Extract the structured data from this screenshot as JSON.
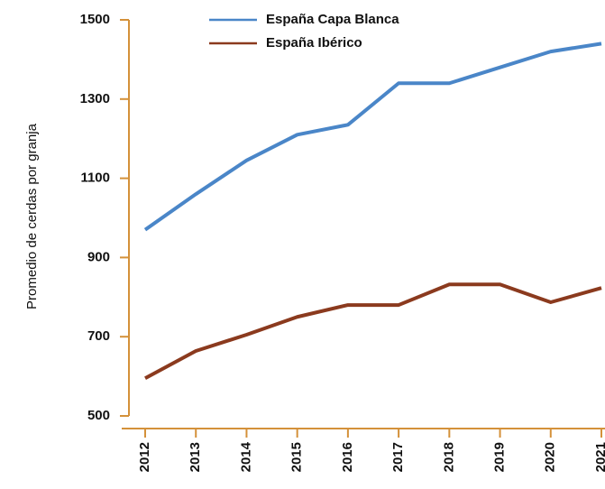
{
  "chart_data": {
    "type": "line",
    "y_label": "Promedio de cerdas por granja",
    "categories": [
      "2012",
      "2013",
      "2014",
      "2015",
      "2016",
      "2017",
      "2018",
      "2019",
      "2020",
      "2021"
    ],
    "series": [
      {
        "name": "España Capa Blanca",
        "color": "#4a86c8",
        "values": [
          970,
          1060,
          1145,
          1210,
          1235,
          1340,
          1340,
          1380,
          1420,
          1440
        ]
      },
      {
        "name": "España Ibérico",
        "color": "#8b3a1e",
        "values": [
          595,
          664,
          705,
          750,
          780,
          780,
          832,
          832,
          787,
          823
        ]
      }
    ],
    "ylim": [
      500,
      1500
    ],
    "yticks": [
      500,
      700,
      900,
      1100,
      1300,
      1500
    ],
    "legend": "top"
  }
}
